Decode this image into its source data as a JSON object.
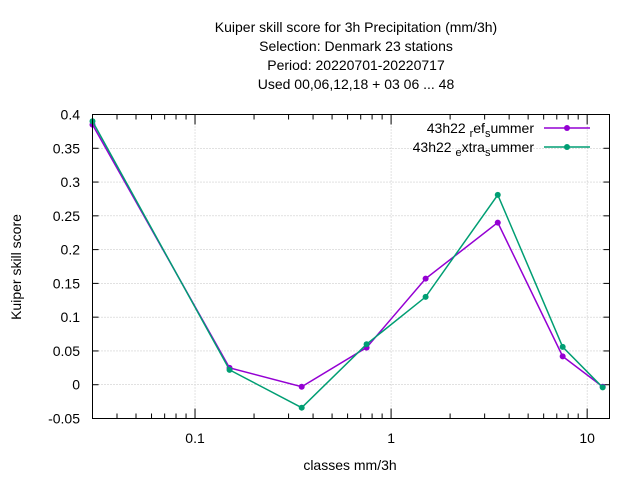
{
  "chart_data": {
    "type": "line",
    "title_lines": [
      "Kuiper skill score  for 3h Precipitation (mm/3h)",
      "Selection: Denmark     23 stations",
      "Period: 20220701-20220717",
      "Used  00,06,12,18  + 03 06 ... 48"
    ],
    "xlabel": "classes mm/3h",
    "ylabel": "Kuiper skill score",
    "x_scale": "log",
    "xlim": [
      0.03,
      13
    ],
    "ylim": [
      -0.05,
      0.4
    ],
    "x_ticks": [
      {
        "value": 0.1,
        "label": "0.1"
      },
      {
        "value": 1,
        "label": "1"
      },
      {
        "value": 10,
        "label": "10"
      }
    ],
    "y_ticks": [
      {
        "value": 0.4,
        "label": "0.4"
      },
      {
        "value": 0.35,
        "label": "0.35"
      },
      {
        "value": 0.3,
        "label": "0.3"
      },
      {
        "value": 0.25,
        "label": "0.25"
      },
      {
        "value": 0.2,
        "label": "0.2"
      },
      {
        "value": 0.15,
        "label": "0.15"
      },
      {
        "value": 0.1,
        "label": "0.1"
      },
      {
        "value": 0.05,
        "label": "0.05"
      },
      {
        "value": 0,
        "label": "0"
      },
      {
        "value": -0.05,
        "label": "-0.05"
      }
    ],
    "grid": true,
    "legend_position": "top-right",
    "series": [
      {
        "name": "43h22 ref summer",
        "legend_parts": [
          "43h22 ",
          "r",
          "ef",
          "s",
          "ummer"
        ],
        "color": "#9400d3",
        "x": [
          0.03,
          0.15,
          0.35,
          0.75,
          1.5,
          3.5,
          7.5,
          12
        ],
        "y": [
          0.385,
          0.025,
          -0.003,
          0.055,
          0.157,
          0.24,
          0.042,
          -0.003
        ]
      },
      {
        "name": "43h22 extra summer",
        "legend_parts": [
          "43h22 ",
          "e",
          "xtra",
          "s",
          "ummer"
        ],
        "color": "#009e73",
        "x": [
          0.03,
          0.15,
          0.35,
          0.75,
          1.5,
          3.5,
          7.5,
          12
        ],
        "y": [
          0.39,
          0.022,
          -0.034,
          0.06,
          0.13,
          0.281,
          0.056,
          -0.004
        ]
      }
    ]
  }
}
